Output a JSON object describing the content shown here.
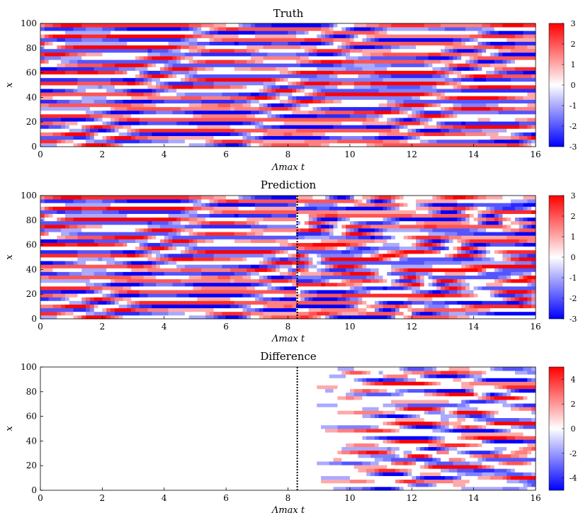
{
  "chart_data": [
    {
      "type": "heatmap",
      "title": "Truth",
      "xlabel": "Λmax t",
      "ylabel": "x",
      "xlim": [
        0,
        16
      ],
      "ylim": [
        0,
        100
      ],
      "xticks": [
        "0",
        "2",
        "4",
        "6",
        "8",
        "10",
        "12",
        "14",
        "16"
      ],
      "yticks": [
        "0",
        "20",
        "40",
        "60",
        "80",
        "100"
      ],
      "colorbar": {
        "min": -3,
        "max": 3,
        "ticks": [
          "3",
          "2",
          "1",
          "0",
          "-1",
          "-2",
          "-3"
        ],
        "colors": [
          "#0000ff",
          "#ffffff",
          "#ff0000"
        ]
      },
      "divider_t": null
    },
    {
      "type": "heatmap",
      "title": "Prediction",
      "xlabel": "Λmax t",
      "ylabel": "x",
      "xlim": [
        0,
        16
      ],
      "ylim": [
        0,
        100
      ],
      "xticks": [
        "0",
        "2",
        "4",
        "6",
        "8",
        "10",
        "12",
        "14",
        "16"
      ],
      "yticks": [
        "0",
        "20",
        "40",
        "60",
        "80",
        "100"
      ],
      "colorbar": {
        "min": -3,
        "max": 3,
        "ticks": [
          "3",
          "2",
          "1",
          "0",
          "-1",
          "-2",
          "-3"
        ],
        "colors": [
          "#0000ff",
          "#ffffff",
          "#ff0000"
        ]
      },
      "divider_t": 8.3
    },
    {
      "type": "heatmap",
      "title": "Difference",
      "xlabel": "Λmax t",
      "ylabel": "x",
      "xlim": [
        0,
        16
      ],
      "ylim": [
        0,
        100
      ],
      "xticks": [
        "0",
        "2",
        "4",
        "6",
        "8",
        "10",
        "12",
        "14",
        "16"
      ],
      "yticks": [
        "0",
        "20",
        "40",
        "60",
        "80",
        "100"
      ],
      "colorbar": {
        "min": -5,
        "max": 5,
        "ticks": [
          "4",
          "2",
          "0",
          "-2",
          "-4"
        ],
        "colors": [
          "#0000ff",
          "#ffffff",
          "#ff0000"
        ]
      },
      "divider_t": 8.3
    }
  ]
}
